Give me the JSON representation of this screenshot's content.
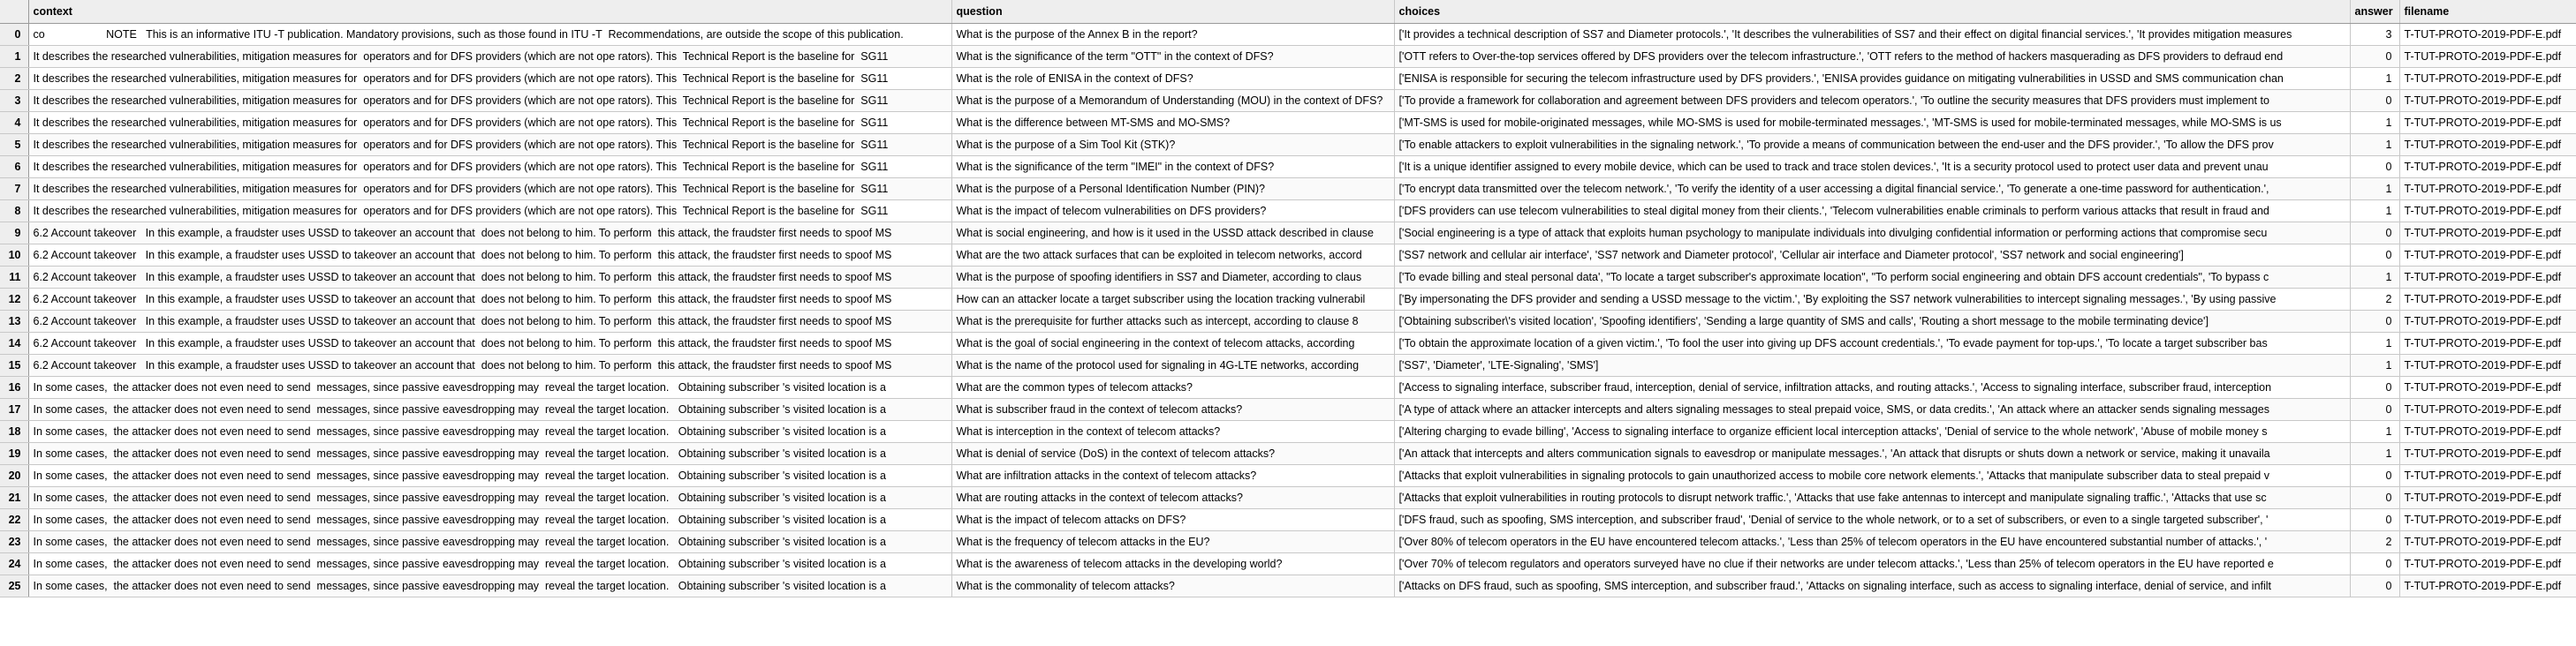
{
  "columns": {
    "index": "",
    "context": "context",
    "question": "question",
    "choices": "choices",
    "answer": "answer",
    "filename": "filename"
  },
  "rows": [
    {
      "index": "0",
      "context": "co                    NOTE   This is an informative ITU -T publication. Mandatory provisions, such as those found in ITU -T  Recommendations, are outside the scope of this publication.",
      "question": "What is the purpose of the Annex B in the report?",
      "choices": "['It provides a technical description of SS7 and Diameter protocols.', 'It describes the vulnerabilities of SS7 and their effect on digital financial services.', 'It provides mitigation measures",
      "answer": "3",
      "filename": "T-TUT-PROTO-2019-PDF-E.pdf"
    },
    {
      "index": "1",
      "context": "It describes the researched vulnerabilities, mitigation measures for  operators and for DFS providers (which are not ope rators). This  Technical Report is the baseline for  SG11",
      "question": "What is the significance of the term \"OTT\" in the context of DFS?",
      "choices": "['OTT refers to Over-the-top services offered by DFS providers over the telecom infrastructure.', 'OTT refers to the method of hackers masquerading as DFS providers to defraud end",
      "answer": "0",
      "filename": "T-TUT-PROTO-2019-PDF-E.pdf"
    },
    {
      "index": "2",
      "context": "It describes the researched vulnerabilities, mitigation measures for  operators and for DFS providers (which are not ope rators). This  Technical Report is the baseline for  SG11",
      "question": "What is the role of ENISA in the context of DFS?",
      "choices": "['ENISA is responsible for securing the telecom infrastructure used by DFS providers.', 'ENISA provides guidance on mitigating vulnerabilities in USSD and SMS communication chan",
      "answer": "1",
      "filename": "T-TUT-PROTO-2019-PDF-E.pdf"
    },
    {
      "index": "3",
      "context": "It describes the researched vulnerabilities, mitigation measures for  operators and for DFS providers (which are not ope rators). This  Technical Report is the baseline for  SG11",
      "question": "What is the purpose of a Memorandum of Understanding (MOU) in the context of DFS?",
      "choices": "['To provide a framework for collaboration and agreement between DFS providers and telecom operators.', 'To outline the security measures that DFS providers must implement to",
      "answer": "0",
      "filename": "T-TUT-PROTO-2019-PDF-E.pdf"
    },
    {
      "index": "4",
      "context": "It describes the researched vulnerabilities, mitigation measures for  operators and for DFS providers (which are not ope rators). This  Technical Report is the baseline for  SG11",
      "question": "What is the difference between MT-SMS and MO-SMS?",
      "choices": "['MT-SMS is used for mobile-originated messages, while MO-SMS is used for mobile-terminated messages.', 'MT-SMS is used for mobile-terminated messages, while MO-SMS is us",
      "answer": "1",
      "filename": "T-TUT-PROTO-2019-PDF-E.pdf"
    },
    {
      "index": "5",
      "context": "It describes the researched vulnerabilities, mitigation measures for  operators and for DFS providers (which are not ope rators). This  Technical Report is the baseline for  SG11",
      "question": "What is the purpose of a Sim Tool Kit (STK)?",
      "choices": "['To enable attackers to exploit vulnerabilities in the signaling network.', 'To provide a means of communication between the end-user and the DFS provider.', 'To allow the DFS prov",
      "answer": "1",
      "filename": "T-TUT-PROTO-2019-PDF-E.pdf"
    },
    {
      "index": "6",
      "context": "It describes the researched vulnerabilities, mitigation measures for  operators and for DFS providers (which are not ope rators). This  Technical Report is the baseline for  SG11",
      "question": "What is the significance of the term \"IMEI\" in the context of DFS?",
      "choices": "['It is a unique identifier assigned to every mobile device, which can be used to track and trace stolen devices.', 'It is a security protocol used to protect user data and prevent unau",
      "answer": "0",
      "filename": "T-TUT-PROTO-2019-PDF-E.pdf"
    },
    {
      "index": "7",
      "context": "It describes the researched vulnerabilities, mitigation measures for  operators and for DFS providers (which are not ope rators). This  Technical Report is the baseline for  SG11",
      "question": "What is the purpose of a Personal Identification Number (PIN)?",
      "choices": "['To encrypt data transmitted over the telecom network.', 'To verify the identity of a user accessing a digital financial service.', 'To generate a one-time password for authentication.',",
      "answer": "1",
      "filename": "T-TUT-PROTO-2019-PDF-E.pdf"
    },
    {
      "index": "8",
      "context": "It describes the researched vulnerabilities, mitigation measures for  operators and for DFS providers (which are not ope rators). This  Technical Report is the baseline for  SG11",
      "question": "What is the impact of telecom vulnerabilities on DFS providers?",
      "choices": "['DFS providers can use telecom vulnerabilities to steal digital money from their clients.', 'Telecom vulnerabilities enable criminals to perform various attacks that result in fraud and",
      "answer": "1",
      "filename": "T-TUT-PROTO-2019-PDF-E.pdf"
    },
    {
      "index": "9",
      "context": "6.2 Account takeover   In this example, a fraudster uses USSD to takeover an account that  does not belong to him. To perform  this attack, the fraudster first needs to spoof MS",
      "question": "What is social engineering, and how is it used in the USSD attack described in clause",
      "choices": "['Social engineering is a type of attack that exploits human psychology to manipulate individuals into divulging confidential information or performing actions that compromise secu",
      "answer": "0",
      "filename": "T-TUT-PROTO-2019-PDF-E.pdf"
    },
    {
      "index": "10",
      "context": "6.2 Account takeover   In this example, a fraudster uses USSD to takeover an account that  does not belong to him. To perform  this attack, the fraudster first needs to spoof MS",
      "question": "What are the two attack surfaces that can be exploited in telecom networks, accord",
      "choices": "['SS7 network and cellular air interface', 'SS7 network and Diameter protocol', 'Cellular air interface and Diameter protocol', 'SS7 network and social engineering']",
      "answer": "0",
      "filename": "T-TUT-PROTO-2019-PDF-E.pdf"
    },
    {
      "index": "11",
      "context": "6.2 Account takeover   In this example, a fraudster uses USSD to takeover an account that  does not belong to him. To perform  this attack, the fraudster first needs to spoof MS",
      "question": "What is the purpose of spoofing identifiers in SS7 and Diameter, according to claus",
      "choices": "['To evade billing and steal personal data', \"To locate a target subscriber's approximate location\", \"To perform social engineering and obtain DFS account credentials\", 'To bypass c",
      "answer": "1",
      "filename": "T-TUT-PROTO-2019-PDF-E.pdf"
    },
    {
      "index": "12",
      "context": "6.2 Account takeover   In this example, a fraudster uses USSD to takeover an account that  does not belong to him. To perform  this attack, the fraudster first needs to spoof MS",
      "question": "How can an attacker locate a target subscriber using the location tracking vulnerabil",
      "choices": "['By impersonating the DFS provider and sending a USSD message to the victim.', 'By exploiting the SS7 network vulnerabilities to intercept signaling messages.', 'By using passive",
      "answer": "2",
      "filename": "T-TUT-PROTO-2019-PDF-E.pdf"
    },
    {
      "index": "13",
      "context": "6.2 Account takeover   In this example, a fraudster uses USSD to takeover an account that  does not belong to him. To perform  this attack, the fraudster first needs to spoof MS",
      "question": "What is the prerequisite for further attacks such as intercept, according to clause 8",
      "choices": "['Obtaining subscriber\\'s visited location', 'Spoofing identifiers', 'Sending a large quantity of SMS and calls', 'Routing a short message to the mobile terminating device']",
      "answer": "0",
      "filename": "T-TUT-PROTO-2019-PDF-E.pdf"
    },
    {
      "index": "14",
      "context": "6.2 Account takeover   In this example, a fraudster uses USSD to takeover an account that  does not belong to him. To perform  this attack, the fraudster first needs to spoof MS",
      "question": "What is the goal of social engineering in the context of telecom attacks, according",
      "choices": "['To obtain the approximate location of a given victim.', 'To fool the user into giving up DFS account credentials.', 'To evade payment for top-ups.', 'To locate a target subscriber bas",
      "answer": "1",
      "filename": "T-TUT-PROTO-2019-PDF-E.pdf"
    },
    {
      "index": "15",
      "context": "6.2 Account takeover   In this example, a fraudster uses USSD to takeover an account that  does not belong to him. To perform  this attack, the fraudster first needs to spoof MS",
      "question": "What is the name of the protocol used for signaling in 4G-LTE networks, according",
      "choices": "['SS7', 'Diameter', 'LTE-Signaling', 'SMS']",
      "answer": "1",
      "filename": "T-TUT-PROTO-2019-PDF-E.pdf"
    },
    {
      "index": "16",
      "context": "In some cases,  the attacker does not even need to send  messages, since passive eavesdropping may  reveal the target location.   Obtaining subscriber 's visited location is a",
      "question": "What are the common types of telecom attacks?",
      "choices": "['Access to signaling interface, subscriber fraud, interception, denial of service, infiltration attacks, and routing attacks.', 'Access to signaling interface, subscriber fraud, interception",
      "answer": "0",
      "filename": "T-TUT-PROTO-2019-PDF-E.pdf"
    },
    {
      "index": "17",
      "context": "In some cases,  the attacker does not even need to send  messages, since passive eavesdropping may  reveal the target location.   Obtaining subscriber 's visited location is a",
      "question": "What is subscriber fraud in the context of telecom attacks?",
      "choices": "['A type of attack where an attacker intercepts and alters signaling messages to steal prepaid voice, SMS, or data credits.', 'An attack where an attacker sends signaling messages",
      "answer": "0",
      "filename": "T-TUT-PROTO-2019-PDF-E.pdf"
    },
    {
      "index": "18",
      "context": "In some cases,  the attacker does not even need to send  messages, since passive eavesdropping may  reveal the target location.   Obtaining subscriber 's visited location is a",
      "question": "What is interception in the context of telecom attacks?",
      "choices": "['Altering charging to evade billing', 'Access to signaling interface to organize efficient local interception attacks', 'Denial of service to the whole network', 'Abuse of mobile money s",
      "answer": "1",
      "filename": "T-TUT-PROTO-2019-PDF-E.pdf"
    },
    {
      "index": "19",
      "context": "In some cases,  the attacker does not even need to send  messages, since passive eavesdropping may  reveal the target location.   Obtaining subscriber 's visited location is a",
      "question": "What is denial of service (DoS) in the context of telecom attacks?",
      "choices": "['An attack that intercepts and alters communication signals to eavesdrop or manipulate messages.', 'An attack that disrupts or shuts down a network or service, making it unavaila",
      "answer": "1",
      "filename": "T-TUT-PROTO-2019-PDF-E.pdf"
    },
    {
      "index": "20",
      "context": "In some cases,  the attacker does not even need to send  messages, since passive eavesdropping may  reveal the target location.   Obtaining subscriber 's visited location is a",
      "question": "What are infiltration attacks in the context of telecom attacks?",
      "choices": "['Attacks that exploit vulnerabilities in signaling protocols to gain unauthorized access to mobile core network elements.', 'Attacks that manipulate subscriber data to steal prepaid v",
      "answer": "0",
      "filename": "T-TUT-PROTO-2019-PDF-E.pdf"
    },
    {
      "index": "21",
      "context": "In some cases,  the attacker does not even need to send  messages, since passive eavesdropping may  reveal the target location.   Obtaining subscriber 's visited location is a",
      "question": "What are routing attacks in the context of telecom attacks?",
      "choices": "['Attacks that exploit vulnerabilities in routing protocols to disrupt network traffic.', 'Attacks that use fake antennas to intercept and manipulate signaling traffic.', 'Attacks that use sc",
      "answer": "0",
      "filename": "T-TUT-PROTO-2019-PDF-E.pdf"
    },
    {
      "index": "22",
      "context": "In some cases,  the attacker does not even need to send  messages, since passive eavesdropping may  reveal the target location.   Obtaining subscriber 's visited location is a",
      "question": "What is the impact of telecom attacks on DFS?",
      "choices": "['DFS fraud, such as spoofing, SMS interception, and subscriber fraud', 'Denial of service to the whole network, or to a set of subscribers, or even to a single targeted subscriber', '",
      "answer": "0",
      "filename": "T-TUT-PROTO-2019-PDF-E.pdf"
    },
    {
      "index": "23",
      "context": "In some cases,  the attacker does not even need to send  messages, since passive eavesdropping may  reveal the target location.   Obtaining subscriber 's visited location is a",
      "question": "What is the frequency of telecom attacks in the EU?",
      "choices": "['Over 80% of telecom operators in the EU have encountered telecom attacks.', 'Less than 25% of telecom operators in the EU have encountered substantial number of attacks.', '",
      "answer": "2",
      "filename": "T-TUT-PROTO-2019-PDF-E.pdf"
    },
    {
      "index": "24",
      "context": "In some cases,  the attacker does not even need to send  messages, since passive eavesdropping may  reveal the target location.   Obtaining subscriber 's visited location is a",
      "question": "What is the awareness of telecom attacks in the developing world?",
      "choices": "['Over 70% of telecom regulators and operators surveyed have no clue if their networks are under telecom attacks.', 'Less than 25% of telecom operators in the EU have reported e",
      "answer": "0",
      "filename": "T-TUT-PROTO-2019-PDF-E.pdf"
    },
    {
      "index": "25",
      "context": "In some cases,  the attacker does not even need to send  messages, since passive eavesdropping may  reveal the target location.   Obtaining subscriber 's visited location is a",
      "question": "What is the commonality of telecom attacks?",
      "choices": "['Attacks on DFS fraud, such as spoofing, SMS interception, and subscriber fraud.', 'Attacks on signaling interface, such as access to signaling interface, denial of service, and infilt",
      "answer": "0",
      "filename": "T-TUT-PROTO-2019-PDF-E.pdf"
    }
  ]
}
